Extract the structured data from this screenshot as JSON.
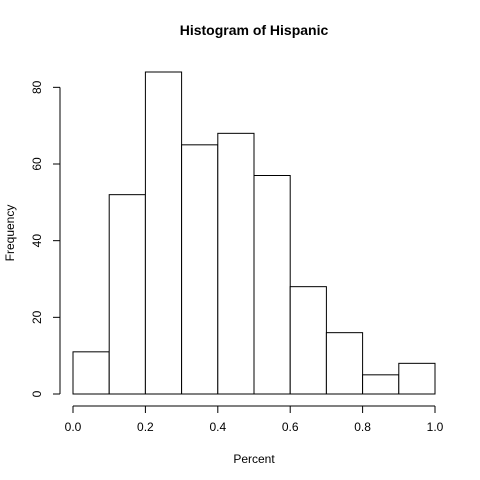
{
  "chart_data": {
    "type": "bar",
    "title": "Histogram of Hispanic",
    "xlabel": "Percent",
    "ylabel": "Frequency",
    "bins": [
      {
        "x0": 0.0,
        "x1": 0.1,
        "count": 11
      },
      {
        "x0": 0.1,
        "x1": 0.2,
        "count": 52
      },
      {
        "x0": 0.2,
        "x1": 0.3,
        "count": 84
      },
      {
        "x0": 0.3,
        "x1": 0.4,
        "count": 65
      },
      {
        "x0": 0.4,
        "x1": 0.5,
        "count": 68
      },
      {
        "x0": 0.5,
        "x1": 0.6,
        "count": 57
      },
      {
        "x0": 0.6,
        "x1": 0.7,
        "count": 28
      },
      {
        "x0": 0.7,
        "x1": 0.8,
        "count": 16
      },
      {
        "x0": 0.8,
        "x1": 0.9,
        "count": 5
      },
      {
        "x0": 0.9,
        "x1": 1.0,
        "count": 8
      }
    ],
    "xticks": [
      0.0,
      0.2,
      0.4,
      0.6,
      0.8,
      1.0
    ],
    "xtick_labels": [
      "0.0",
      "0.2",
      "0.4",
      "0.6",
      "0.8",
      "1.0"
    ],
    "yticks": [
      0,
      20,
      40,
      60,
      80
    ],
    "ytick_labels": [
      "0",
      "20",
      "40",
      "60",
      "80"
    ],
    "xlim": [
      0.0,
      1.0
    ],
    "ylim": [
      0,
      84
    ],
    "grid": false,
    "legend": "none",
    "bar_fill": "#ffffff",
    "bar_stroke": "#000000"
  }
}
